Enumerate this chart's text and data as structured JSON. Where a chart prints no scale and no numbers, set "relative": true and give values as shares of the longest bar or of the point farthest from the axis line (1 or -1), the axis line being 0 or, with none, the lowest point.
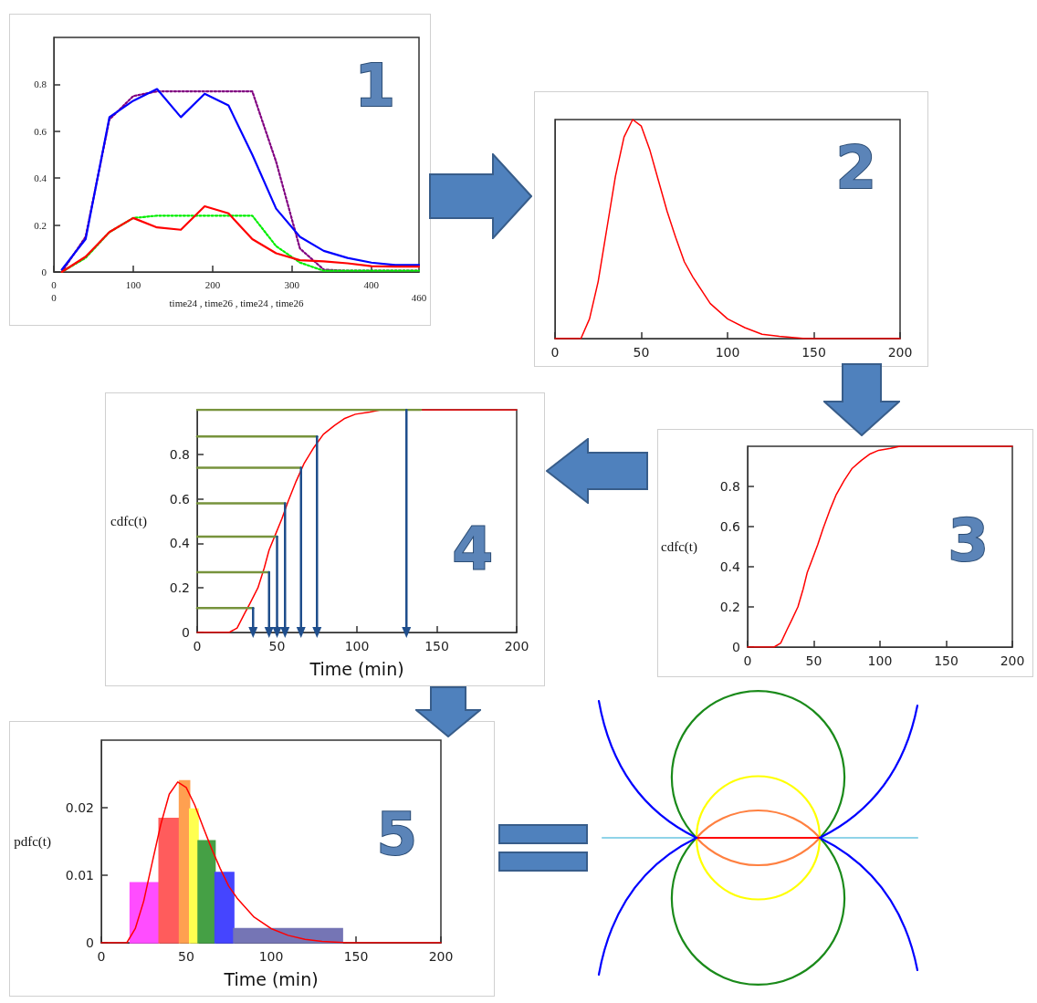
{
  "chart_data": [
    {
      "type": "line",
      "xlabel": "time24 , time26 , time24 , time26",
      "xlim": [
        0,
        460
      ],
      "xticks": [
        0,
        100,
        200,
        300,
        400
      ],
      "ylim": [
        0,
        1
      ],
      "yticks": [
        0,
        0.2,
        0.4,
        0.6,
        0.8
      ],
      "marker": "none",
      "annotations": [
        "1",
        "0",
        "460"
      ],
      "x": [
        10,
        40,
        70,
        100,
        130,
        160,
        190,
        220,
        250,
        280,
        310,
        340,
        370,
        400,
        430,
        460
      ],
      "series": [
        {
          "color": "#800080",
          "line_style": "dotted",
          "values": [
            0,
            0.15,
            0.65,
            0.75,
            0.77,
            0.77,
            0.77,
            0.77,
            0.77,
            0.47,
            0.1,
            0.01,
            0.005,
            0.005,
            0.005,
            0.005
          ]
        },
        {
          "color": "#00ee00",
          "line_style": "dotted",
          "values": [
            0,
            0.06,
            0.17,
            0.23,
            0.24,
            0.24,
            0.24,
            0.24,
            0.24,
            0.11,
            0.04,
            0.005,
            0.005,
            0.005,
            0.005,
            0.005
          ]
        },
        {
          "color": "#0000ff",
          "line_style": "solid",
          "values": [
            0.01,
            0.14,
            0.66,
            0.73,
            0.78,
            0.66,
            0.76,
            0.71,
            0.5,
            0.27,
            0.15,
            0.09,
            0.06,
            0.04,
            0.03,
            0.03
          ]
        },
        {
          "color": "#ff0000",
          "line_style": "solid",
          "values": [
            0,
            0.065,
            0.17,
            0.23,
            0.19,
            0.18,
            0.28,
            0.25,
            0.14,
            0.08,
            0.05,
            0.045,
            0.037,
            0.025,
            0.023,
            0.023
          ]
        }
      ]
    },
    {
      "type": "line",
      "relative": true,
      "xlim": [
        0,
        200
      ],
      "xticks": [
        0,
        50,
        100,
        150,
        200
      ],
      "marker": "none",
      "annotations": [
        "2"
      ],
      "x": [
        0,
        15,
        20,
        25,
        30,
        35,
        40,
        45,
        50,
        55,
        60,
        65,
        70,
        75,
        80,
        90,
        100,
        110,
        120,
        130,
        145,
        200
      ],
      "series": [
        {
          "color": "#ff0000",
          "values": [
            0,
            0,
            0.09,
            0.26,
            0.5,
            0.74,
            0.92,
            1,
            0.97,
            0.86,
            0.72,
            0.58,
            0.46,
            0.35,
            0.28,
            0.16,
            0.09,
            0.05,
            0.02,
            0.01,
            0,
            0
          ]
        }
      ]
    },
    {
      "type": "line",
      "ylabel": "cdfc(t)",
      "xlim": [
        0,
        200
      ],
      "xticks": [
        0,
        50,
        100,
        150,
        200
      ],
      "ylim": [
        0,
        1
      ],
      "yticks": [
        0,
        0.2,
        0.4,
        0.6,
        0.8
      ],
      "marker": "none",
      "annotations": [
        "3"
      ],
      "x": [
        0,
        20,
        25,
        30,
        33,
        38,
        42,
        45,
        49,
        53,
        57,
        62,
        67,
        73,
        79,
        86,
        92,
        99,
        108,
        115,
        130,
        200
      ],
      "series": [
        {
          "color": "#ff0000",
          "values": [
            0,
            0,
            0.02,
            0.09,
            0.13,
            0.2,
            0.29,
            0.37,
            0.44,
            0.51,
            0.59,
            0.68,
            0.76,
            0.83,
            0.89,
            0.93,
            0.96,
            0.98,
            0.99,
            1,
            1,
            1
          ]
        }
      ]
    },
    {
      "type": "line",
      "ylabel": "cdfc(t)",
      "xlabel": "Time (min)",
      "xlim": [
        0,
        200
      ],
      "xticks": [
        0,
        50,
        100,
        150,
        200
      ],
      "ylim": [
        0,
        1
      ],
      "yticks": [
        0,
        0.2,
        0.4,
        0.6,
        0.8
      ],
      "marker": "none",
      "annotations": [
        "4"
      ],
      "x": [
        0,
        20,
        25,
        30,
        33,
        38,
        42,
        45,
        49,
        53,
        57,
        62,
        67,
        73,
        79,
        86,
        92,
        99,
        108,
        115,
        130,
        200
      ],
      "series": [
        {
          "color": "#ff0000",
          "values": [
            0,
            0,
            0.02,
            0.09,
            0.13,
            0.2,
            0.29,
            0.37,
            0.44,
            0.51,
            0.59,
            0.68,
            0.76,
            0.83,
            0.89,
            0.93,
            0.96,
            0.98,
            0.99,
            1,
            1,
            1
          ]
        },
        {
          "color": "#77933c",
          "x": [
            0,
            35
          ],
          "values": [
            0.11,
            0.11
          ]
        },
        {
          "color": "#77933c",
          "x": [
            0,
            45
          ],
          "values": [
            0.27,
            0.27
          ]
        },
        {
          "color": "#77933c",
          "x": [
            0,
            50
          ],
          "values": [
            0.43,
            0.43
          ]
        },
        {
          "color": "#77933c",
          "x": [
            0,
            55
          ],
          "values": [
            0.58,
            0.58
          ]
        },
        {
          "color": "#77933c",
          "x": [
            0,
            65
          ],
          "values": [
            0.74,
            0.74
          ]
        },
        {
          "color": "#77933c",
          "x": [
            0,
            75
          ],
          "values": [
            0.88,
            0.88
          ]
        },
        {
          "color": "#77933c",
          "x": [
            0,
            140
          ],
          "values": [
            1,
            1
          ]
        },
        {
          "color": "#1f4e8c",
          "marker": "triangle",
          "x": [
            35,
            35
          ],
          "values": [
            0.11,
            0
          ]
        },
        {
          "color": "#1f4e8c",
          "marker": "triangle",
          "x": [
            45,
            45
          ],
          "values": [
            0.27,
            0
          ]
        },
        {
          "color": "#1f4e8c",
          "marker": "triangle",
          "x": [
            50,
            50
          ],
          "values": [
            0.43,
            0
          ]
        },
        {
          "color": "#1f4e8c",
          "marker": "triangle",
          "x": [
            55,
            55
          ],
          "values": [
            0.58,
            0
          ]
        },
        {
          "color": "#1f4e8c",
          "marker": "triangle",
          "x": [
            65,
            65
          ],
          "values": [
            0.74,
            0
          ]
        },
        {
          "color": "#1f4e8c",
          "marker": "triangle",
          "x": [
            75,
            75
          ],
          "values": [
            0.88,
            0
          ]
        },
        {
          "color": "#1f4e8c",
          "marker": "triangle",
          "x": [
            131,
            131
          ],
          "values": [
            1,
            0
          ]
        }
      ]
    },
    {
      "type": "histogram",
      "ylabel": "pdfc(t)",
      "xlabel": "Time (min)",
      "xlim": [
        0,
        200
      ],
      "xticks": [
        0,
        50,
        100,
        150,
        200
      ],
      "ylim": [
        0,
        0.03
      ],
      "yticks": [
        0,
        0.01,
        0.02
      ],
      "marker": "none",
      "annotations": [
        "5"
      ],
      "bins": [
        17,
        34,
        46,
        52,
        57,
        67,
        78,
        142
      ],
      "values": [
        0.0089,
        0.0184,
        0.024,
        0.0198,
        0.0151,
        0.0104,
        0.0021
      ],
      "colors": [
        "#ff4dff",
        "#ff5c5c",
        "#ffa050",
        "#ffff50",
        "#45a045",
        "#4545ff",
        "#7575b5"
      ],
      "series": [
        {
          "type": "line",
          "color": "#ff0000",
          "x": [
            0,
            15,
            20,
            25,
            30,
            35,
            40,
            45,
            50,
            55,
            60,
            65,
            70,
            75,
            80,
            90,
            100,
            110,
            120,
            130,
            145,
            200
          ],
          "values": [
            0,
            0,
            0.0021,
            0.0062,
            0.0119,
            0.0175,
            0.022,
            0.0238,
            0.023,
            0.0204,
            0.0171,
            0.0139,
            0.011,
            0.0084,
            0.0066,
            0.0038,
            0.0021,
            0.0011,
            0.0005,
            0.0002,
            0,
            0
          ]
        }
      ]
    }
  ]
}
